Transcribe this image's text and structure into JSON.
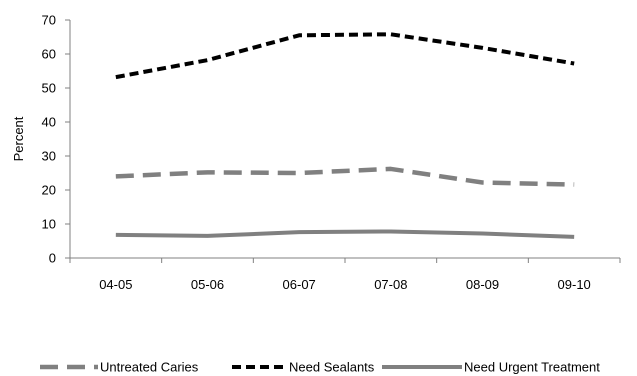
{
  "chart_data": {
    "type": "line",
    "title": "",
    "xlabel": "",
    "ylabel": "Percent",
    "categories": [
      "04-05",
      "05-06",
      "06-07",
      "07-08",
      "08-09",
      "09-10"
    ],
    "ylim": [
      0,
      70
    ],
    "yticks": [
      0,
      10,
      20,
      30,
      40,
      50,
      60,
      70
    ],
    "grid": false,
    "legend_position": "bottom",
    "series": [
      {
        "name": "Untreated Caries",
        "values": [
          24,
          25.2,
          25,
          26.2,
          22.2,
          21.6
        ],
        "color": "#808080",
        "dash": "long-dash"
      },
      {
        "name": "Need Sealants",
        "values": [
          53.2,
          58.2,
          65.5,
          65.8,
          61.8,
          57.2
        ],
        "color": "#000000",
        "dash": "short-dash"
      },
      {
        "name": "Need Urgent Treatment",
        "values": [
          6.8,
          6.5,
          7.6,
          7.8,
          7.2,
          6.2
        ],
        "color": "#808080",
        "dash": "solid"
      }
    ]
  }
}
